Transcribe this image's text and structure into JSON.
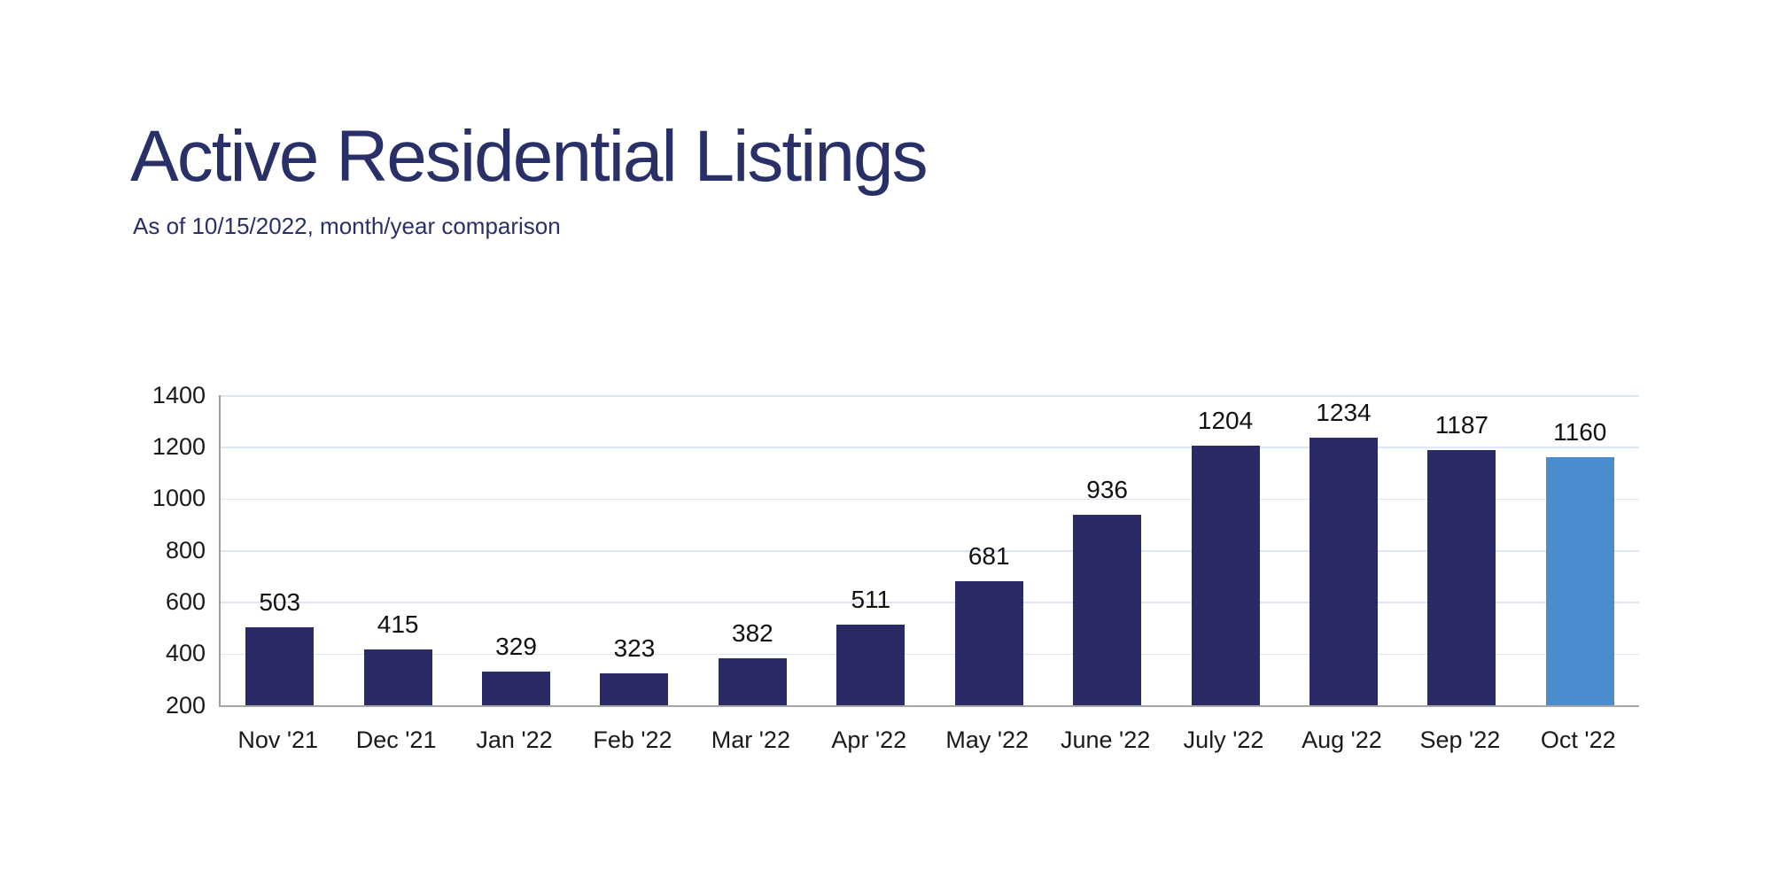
{
  "header": {
    "title": "Active Residential Listings",
    "subtitle": "As of 10/15/2022, month/year comparison"
  },
  "chart_data": {
    "type": "bar",
    "title": "Active Residential Listings",
    "subtitle": "As of 10/15/2022, month/year comparison",
    "categories": [
      "Nov '21",
      "Dec '21",
      "Jan '22",
      "Feb '22",
      "Mar '22",
      "Apr '22",
      "May '22",
      "June '22",
      "July '22",
      "Aug '22",
      "Sep '22",
      "Oct '22"
    ],
    "values": [
      503,
      415,
      329,
      323,
      382,
      511,
      681,
      936,
      1204,
      1234,
      1187,
      1160
    ],
    "data_labels": [
      503,
      415,
      329,
      323,
      382,
      511,
      681,
      936,
      1204,
      1234,
      1187,
      1160
    ],
    "highlight_index": 11,
    "ylim": [
      200,
      1400
    ],
    "yticks": [
      200,
      400,
      600,
      800,
      1000,
      1200,
      1400
    ],
    "grid": true,
    "legend_position": "none",
    "xlabel": "",
    "ylabel": "",
    "colors": {
      "bar": "#2a2b66",
      "highlight_bar": "#4a8ccd",
      "gridline": "#dde6f4",
      "axis_line": "#a6a6a6",
      "title_text": "#293067",
      "subtitle_text": "#293067",
      "label_text": "#1a1a1a"
    }
  }
}
